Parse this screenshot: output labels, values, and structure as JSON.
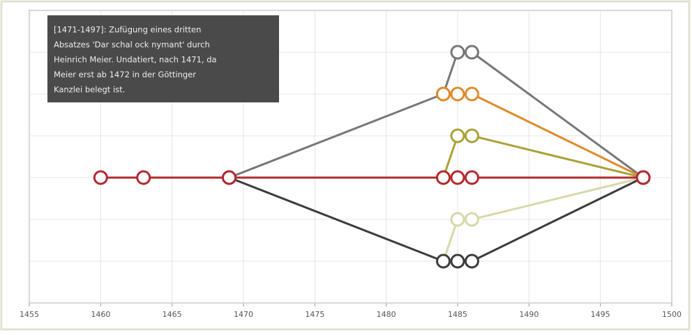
{
  "chart_data": {
    "type": "line",
    "annotation": [
      "[1471-1497]: Zufügung eines dritten",
      "Absatzes 'Dar schal ock nymant' durch",
      "Heinrich Meier. Undatiert, nach 1471, da",
      "Meier erst ab 1472 in der Göttinger",
      "Kanzlei belegt ist."
    ],
    "xlim": [
      1455,
      1500
    ],
    "xticks": [
      1455,
      1460,
      1465,
      1470,
      1475,
      1480,
      1485,
      1490,
      1495,
      1500
    ],
    "ylim": [
      0,
      7
    ],
    "yticks": [
      0,
      1,
      2,
      3,
      4,
      5,
      6,
      7
    ],
    "grid": true,
    "series": [
      {
        "color": "#777777",
        "x": [
          1469,
          1484,
          1485,
          1486,
          1498
        ],
        "values": [
          3,
          5,
          6,
          6,
          3
        ]
      },
      {
        "color": "#e08a2a",
        "x": [
          1484,
          1485,
          1486,
          1498
        ],
        "values": [
          5,
          5,
          5,
          3
        ]
      },
      {
        "color": "#a9a236",
        "x": [
          1484,
          1485,
          1486,
          1498
        ],
        "values": [
          3,
          4,
          4,
          3
        ]
      },
      {
        "color": "#d9d7a9",
        "x": [
          1484,
          1485,
          1486,
          1498
        ],
        "values": [
          1,
          2,
          2,
          3
        ]
      },
      {
        "color": "#3c3c3c",
        "x": [
          1469,
          1484,
          1485,
          1486,
          1498
        ],
        "values": [
          3,
          1,
          1,
          1,
          3
        ]
      },
      {
        "color": "#b3282d",
        "x": [
          1460,
          1463,
          1469,
          1484,
          1485,
          1486,
          1498
        ],
        "values": [
          3,
          3,
          3,
          3,
          3,
          3,
          3
        ]
      }
    ]
  }
}
